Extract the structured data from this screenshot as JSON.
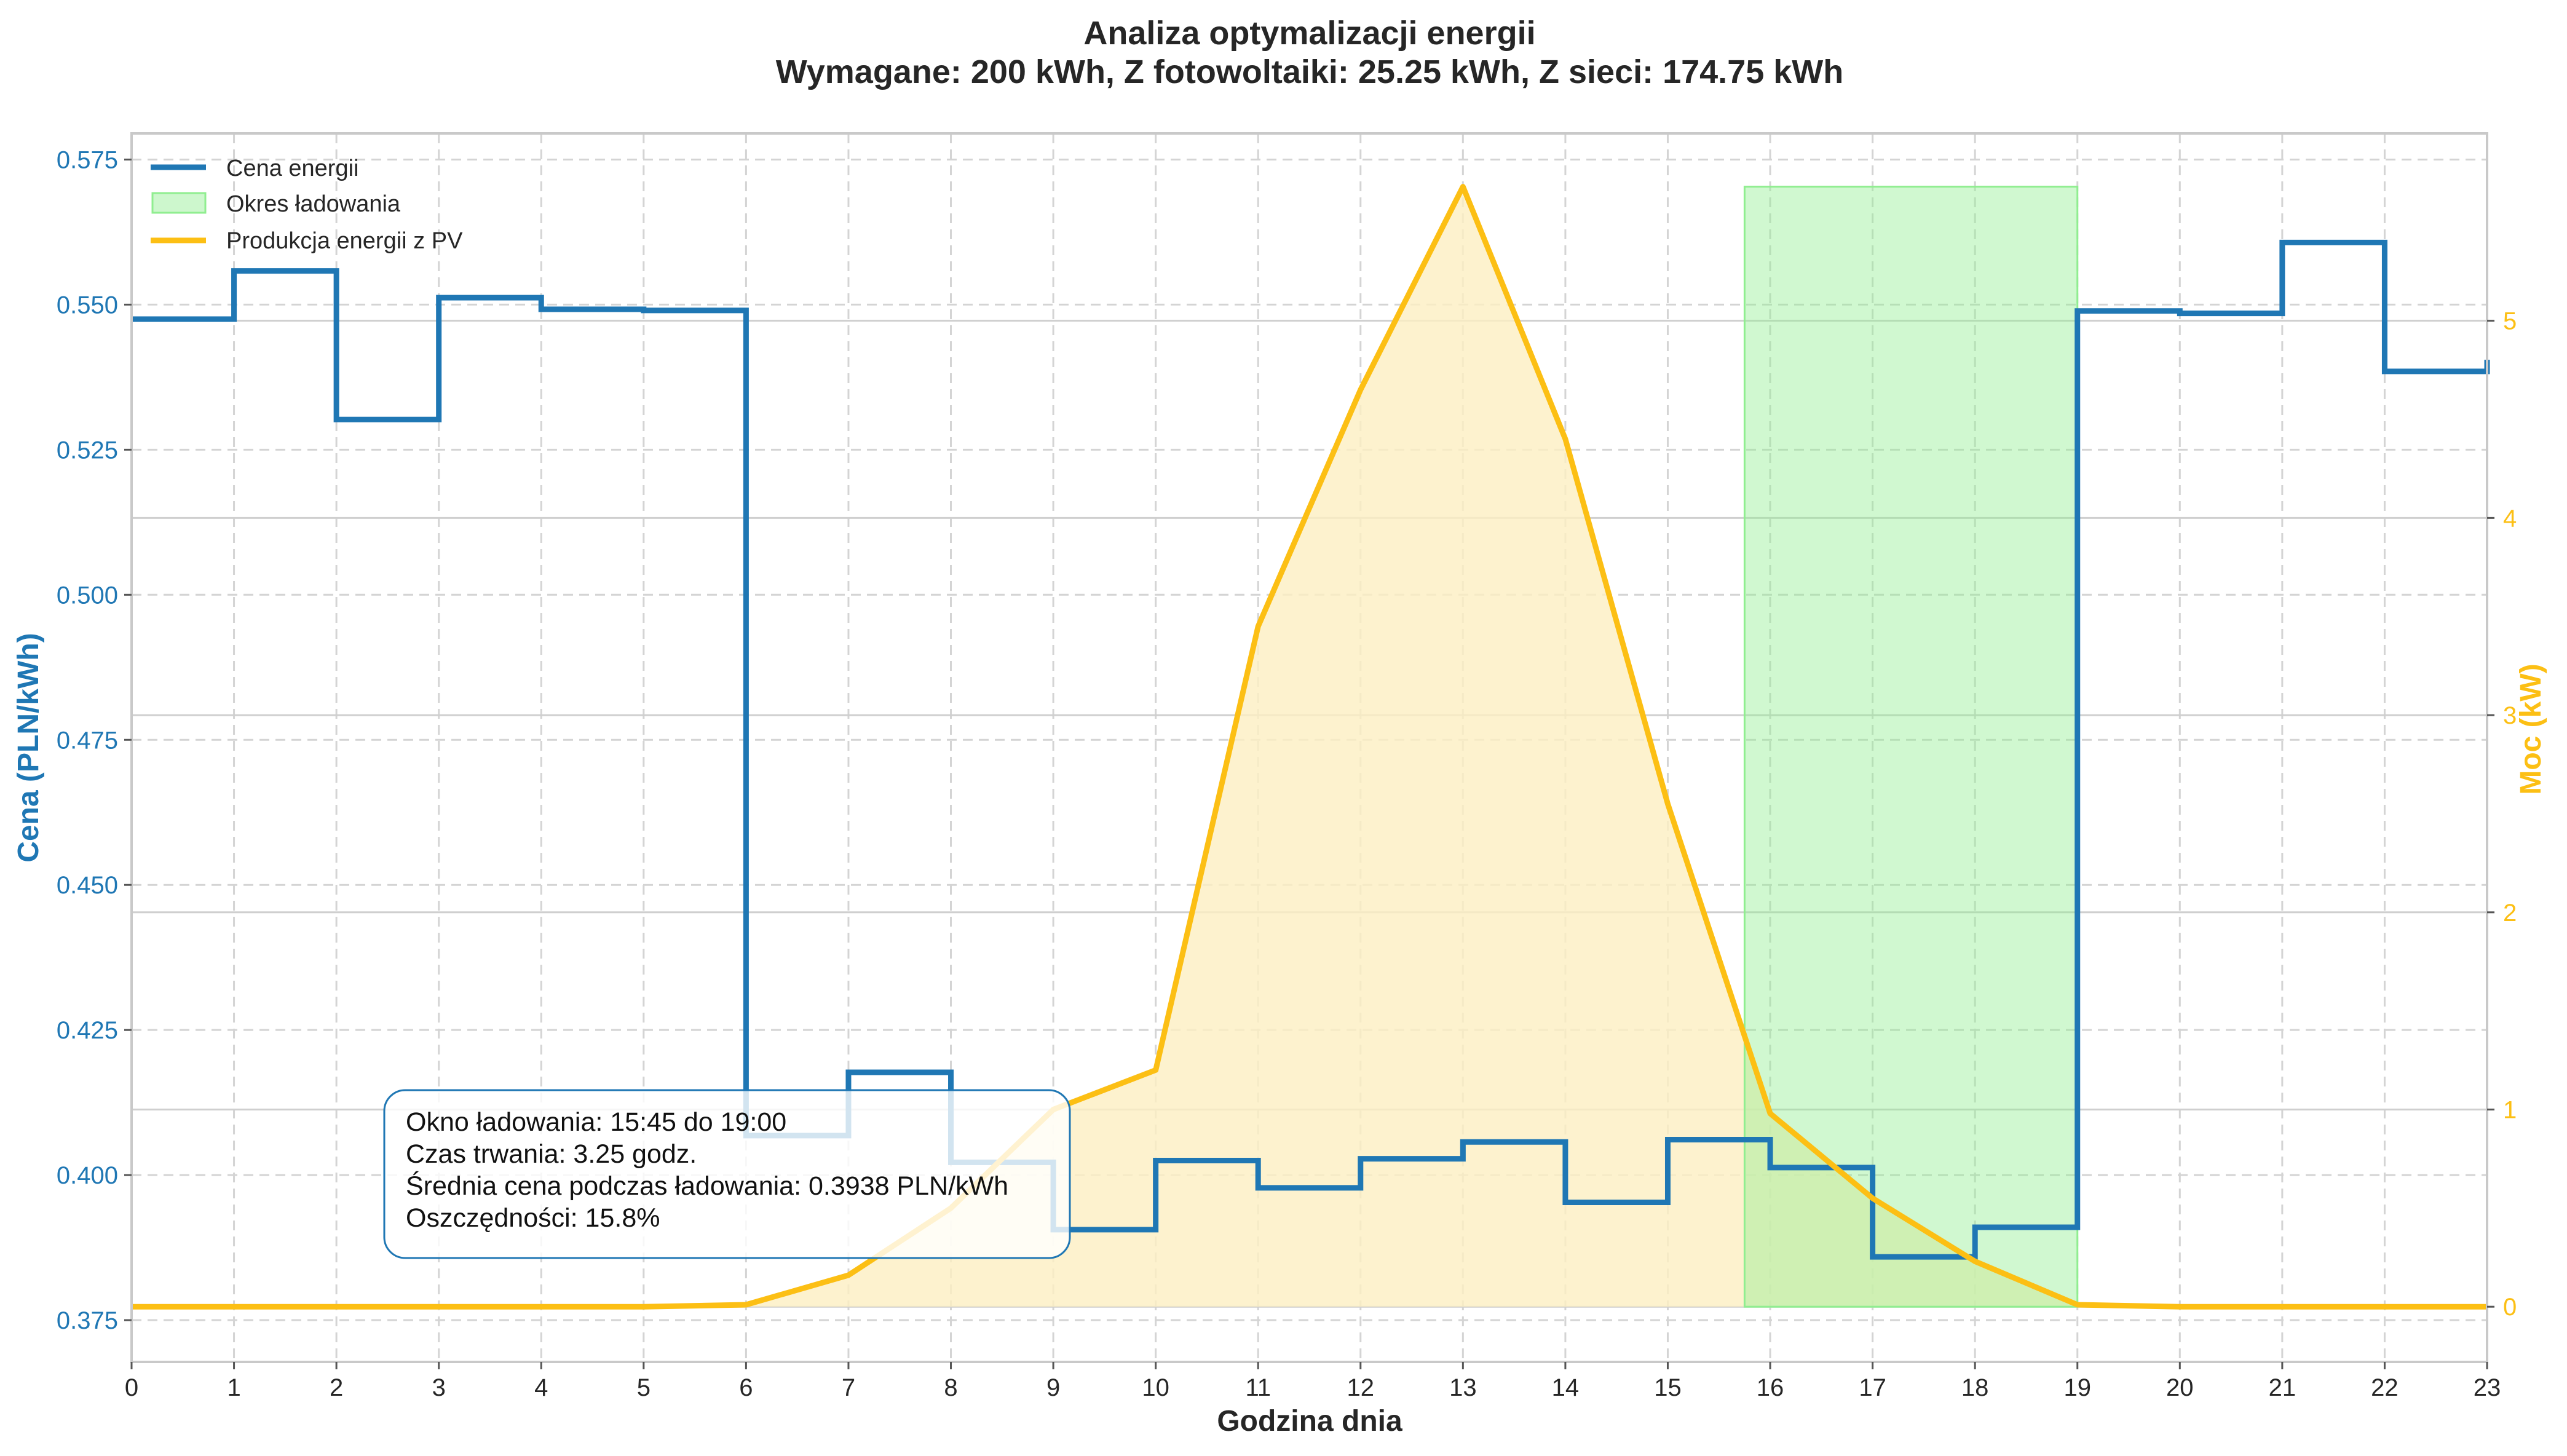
{
  "chart_data": {
    "type": "line",
    "title": "Analiza optymalizacji energii",
    "subtitle": "Wymagane: 200 kWh, Z fotowoltaiki: 25.25 kWh, Z sieci: 174.75 kWh",
    "xlabel": "Godzina dnia",
    "ylabel_left": "Cena (PLN/kWh)",
    "ylabel_right": "Moc (kW)",
    "x_ticks": [
      "0",
      "1",
      "2",
      "3",
      "4",
      "5",
      "6",
      "7",
      "8",
      "9",
      "10",
      "11",
      "12",
      "13",
      "14",
      "15",
      "16",
      "17",
      "18",
      "19",
      "20",
      "21",
      "22",
      "23"
    ],
    "y_left_ticks": [
      "0.375",
      "0.400",
      "0.425",
      "0.450",
      "0.475",
      "0.500",
      "0.525",
      "0.550",
      "0.575"
    ],
    "y_right_ticks": [
      "0",
      "1",
      "2",
      "3",
      "4",
      "5"
    ],
    "xlim": [
      0,
      23
    ],
    "ylim_left": [
      0.3678,
      0.5795
    ],
    "ylim_right": [
      -0.28,
      5.95
    ],
    "grid": true,
    "legend_position": "top-left",
    "legend": [
      "Cena energii",
      "Okres ładowania",
      "Produkcja energii z PV"
    ],
    "colors": {
      "price": "#1f77b4",
      "pv": "#fcbf14",
      "pv_fill": "#fcefc2",
      "charging_fill": "#90ee90"
    },
    "series": [
      {
        "name": "Cena energii",
        "axis": "left",
        "step": "post",
        "x": [
          0,
          1,
          2,
          3,
          4,
          5,
          6,
          7,
          8,
          9,
          10,
          11,
          12,
          13,
          14,
          15,
          16,
          17,
          18,
          19,
          20,
          21,
          22,
          23
        ],
        "values": [
          0.5475,
          0.5558,
          0.5302,
          0.5512,
          0.5492,
          0.549,
          0.4068,
          0.4177,
          0.4022,
          0.3906,
          0.4025,
          0.3978,
          0.4028,
          0.4057,
          0.3953,
          0.4061,
          0.4013,
          0.3859,
          0.391,
          0.5489,
          0.5485,
          0.5607,
          0.5385,
          0.5405
        ]
      },
      {
        "name": "Produkcja energii z PV",
        "axis": "right",
        "x": [
          0,
          1,
          2,
          3,
          4,
          5,
          6,
          7,
          8,
          9,
          10,
          11,
          12,
          13,
          14,
          15,
          16,
          17,
          18,
          19,
          20,
          21,
          22,
          23
        ],
        "values": [
          0,
          0,
          0,
          0,
          0,
          0,
          0.01,
          0.16,
          0.5,
          1.0,
          1.2,
          3.45,
          4.65,
          5.68,
          4.4,
          2.55,
          0.98,
          0.55,
          0.23,
          0.01,
          0,
          0,
          0,
          0
        ]
      }
    ],
    "charging_window": {
      "label": "Okres ładowania",
      "start": 15.75,
      "end": 19.0,
      "power_max": 5.68
    },
    "annotation": [
      "Okno ładowania: 15:45 do 19:00",
      "Czas trwania: 3.25 godz.",
      "Średnia cena podczas ładowania: 0.3938 PLN/kWh",
      "Oszczędności: 15.8%"
    ]
  }
}
